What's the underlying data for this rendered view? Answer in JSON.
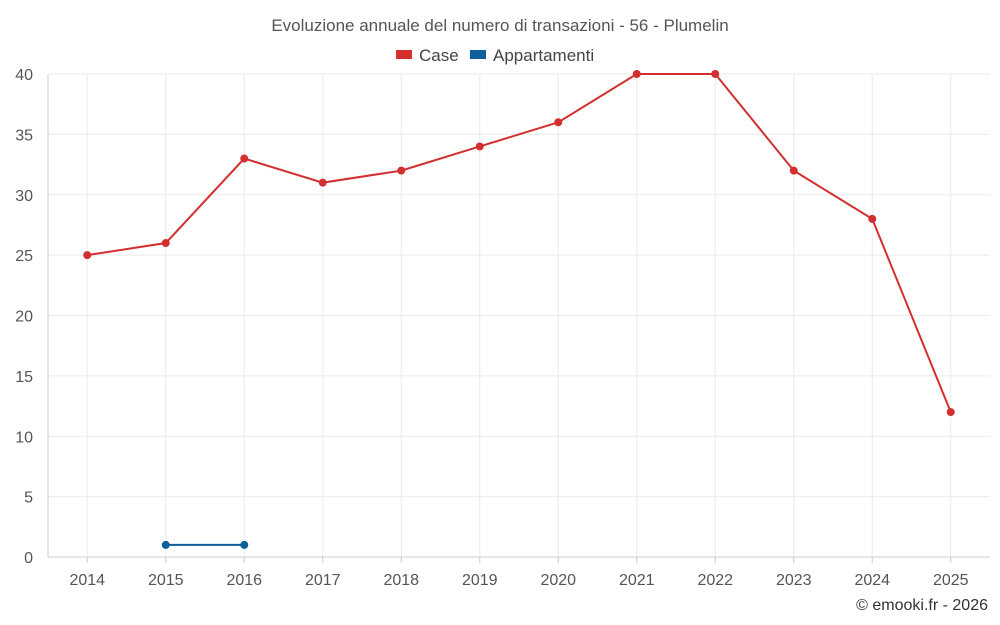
{
  "chart_data": {
    "type": "line",
    "title": "Evoluzione annuale del numero di transazioni - 56 - Plumelin",
    "xlabel": "",
    "ylabel": "",
    "categories": [
      "2014",
      "2015",
      "2016",
      "2017",
      "2018",
      "2019",
      "2020",
      "2021",
      "2022",
      "2023",
      "2024",
      "2025"
    ],
    "ylim": [
      0,
      40
    ],
    "yticks": [
      0,
      5,
      10,
      15,
      20,
      25,
      30,
      35,
      40
    ],
    "grid": true,
    "legend_position": "top-center",
    "series": [
      {
        "name": "Case",
        "color": "#d32f2f",
        "values": [
          25,
          26,
          33,
          31,
          32,
          34,
          36,
          40,
          40,
          32,
          28,
          12
        ]
      },
      {
        "name": "Appartamenti",
        "color": "#0d5e9c",
        "values": [
          null,
          1,
          1,
          null,
          null,
          null,
          null,
          null,
          null,
          null,
          null,
          null
        ]
      }
    ],
    "credit": "© emooki.fr - 2026"
  }
}
